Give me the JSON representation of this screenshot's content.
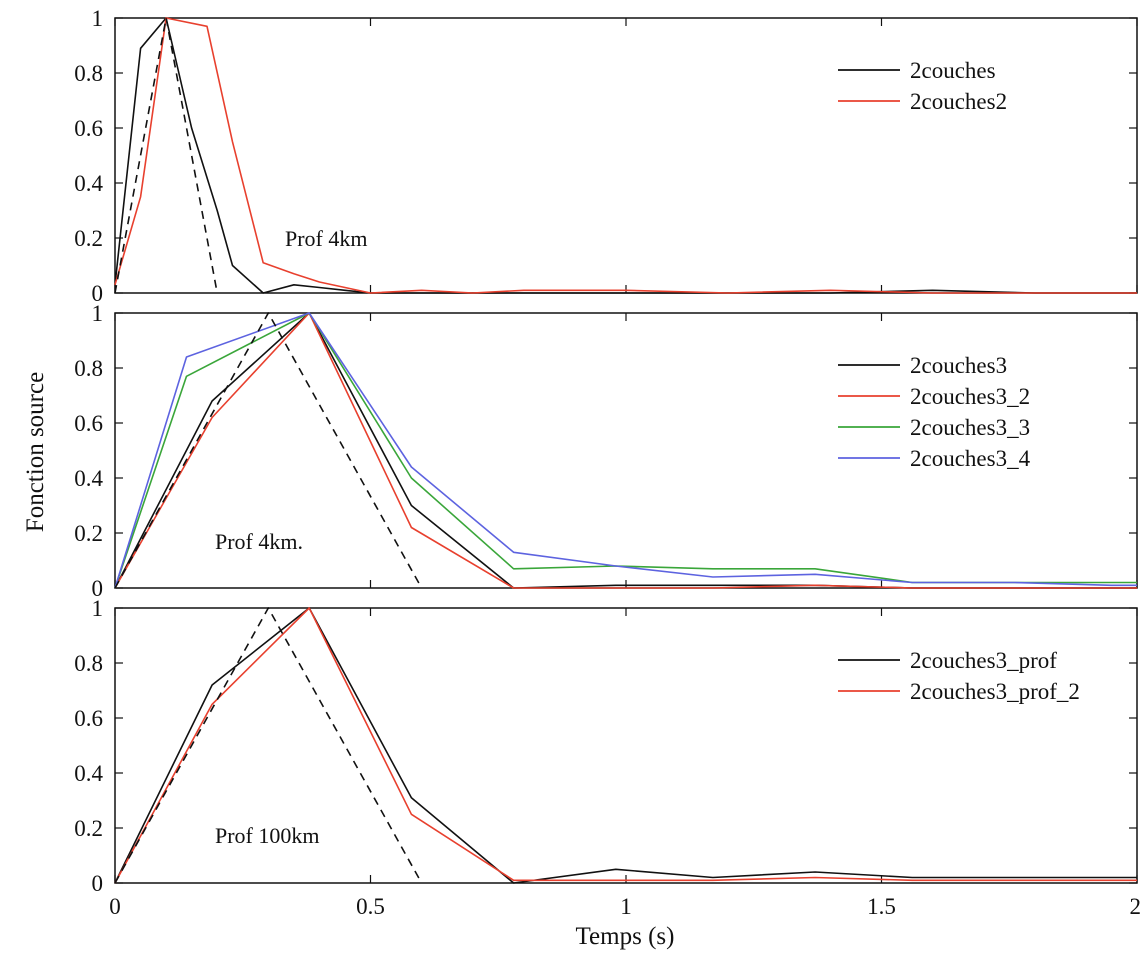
{
  "figure": {
    "ylabel": "Fonction source",
    "xlabel": "Temps (s)"
  },
  "chart_data": [
    {
      "type": "line",
      "annotation": "Prof 4km",
      "xlim": [
        0,
        2
      ],
      "ylim": [
        0,
        1
      ],
      "xticks": [
        "0",
        "0.5",
        "1",
        "1.5",
        "2"
      ],
      "yticks": [
        "0",
        "0.2",
        "0.4",
        "0.6",
        "0.8",
        "1"
      ],
      "show_xtick_labels": false,
      "legend": "top-right",
      "series": [
        {
          "name": "2couches",
          "color": "#111111",
          "x": [
            0,
            0.05,
            0.1,
            0.15,
            0.2,
            0.23,
            0.29,
            0.35,
            0.4,
            0.45,
            0.5,
            0.6,
            0.8,
            1.0,
            1.2,
            1.4,
            1.6,
            1.8,
            2.0
          ],
          "y": [
            0.03,
            0.89,
            1.0,
            0.6,
            0.3,
            0.1,
            0.0,
            0.03,
            0.02,
            0.01,
            0.0,
            0.0,
            0.0,
            0.0,
            0.0,
            0.0,
            0.01,
            0.0,
            0.0
          ]
        },
        {
          "name": "2couches2",
          "color": "#e8402e",
          "x": [
            0,
            0.05,
            0.1,
            0.18,
            0.23,
            0.29,
            0.35,
            0.4,
            0.45,
            0.5,
            0.6,
            0.7,
            0.8,
            1.0,
            1.2,
            1.4,
            1.6,
            1.8,
            2.0
          ],
          "y": [
            0.03,
            0.35,
            1.0,
            0.97,
            0.55,
            0.11,
            0.07,
            0.04,
            0.02,
            0.0,
            0.01,
            0.0,
            0.01,
            0.01,
            0.0,
            0.01,
            0.0,
            0.0,
            0.0
          ]
        },
        {
          "name": "",
          "color": "#111111",
          "dashed": true,
          "x": [
            0,
            0.1,
            0.2
          ],
          "y": [
            0,
            1,
            0
          ]
        }
      ]
    },
    {
      "type": "line",
      "annotation": "Prof 4km.",
      "xlim": [
        0,
        2
      ],
      "ylim": [
        0,
        1
      ],
      "xticks": [
        "0",
        "0.5",
        "1",
        "1.5",
        "2"
      ],
      "yticks": [
        "0",
        "0.2",
        "0.4",
        "0.6",
        "0.8",
        "1"
      ],
      "show_xtick_labels": false,
      "legend": "top-right",
      "series": [
        {
          "name": "2couches3",
          "color": "#111111",
          "x": [
            0,
            0.19,
            0.38,
            0.58,
            0.78,
            0.98,
            1.17,
            1.37,
            1.56,
            1.76,
            1.95,
            2.0
          ],
          "y": [
            0,
            0.68,
            1.0,
            0.3,
            0.0,
            0.01,
            0.01,
            0.01,
            0.0,
            0.0,
            0.0,
            0.0
          ]
        },
        {
          "name": "2couches3_2",
          "color": "#e8402e",
          "x": [
            0,
            0.19,
            0.38,
            0.58,
            0.78,
            0.98,
            1.17,
            1.37,
            1.56,
            1.76,
            1.95,
            2.0
          ],
          "y": [
            0,
            0.62,
            1.0,
            0.22,
            0.0,
            0.0,
            0.0,
            0.01,
            0.0,
            0.0,
            0.0,
            0.0
          ]
        },
        {
          "name": "2couches3_3",
          "color": "#3aa63a",
          "x": [
            0,
            0.14,
            0.38,
            0.58,
            0.78,
            0.98,
            1.17,
            1.37,
            1.56,
            1.76,
            1.95,
            2.0
          ],
          "y": [
            0,
            0.77,
            1.0,
            0.4,
            0.07,
            0.08,
            0.07,
            0.07,
            0.02,
            0.02,
            0.02,
            0.02
          ]
        },
        {
          "name": "2couches3_4",
          "color": "#5d63e0",
          "x": [
            0,
            0.14,
            0.38,
            0.58,
            0.78,
            0.98,
            1.17,
            1.37,
            1.56,
            1.76,
            1.95,
            2.0
          ],
          "y": [
            0,
            0.84,
            1.0,
            0.44,
            0.13,
            0.08,
            0.04,
            0.05,
            0.02,
            0.02,
            0.01,
            0.01
          ]
        },
        {
          "name": "",
          "color": "#111111",
          "dashed": true,
          "x": [
            0,
            0.3,
            0.6
          ],
          "y": [
            0,
            1,
            0
          ]
        }
      ]
    },
    {
      "type": "line",
      "annotation": "Prof 100km",
      "xlim": [
        0,
        2
      ],
      "ylim": [
        0,
        1
      ],
      "xticks": [
        "0",
        "0.5",
        "1",
        "1.5",
        "2"
      ],
      "yticks": [
        "0",
        "0.2",
        "0.4",
        "0.6",
        "0.8",
        "1"
      ],
      "show_xtick_labels": true,
      "legend": "top-right",
      "series": [
        {
          "name": "2couches3_prof",
          "color": "#111111",
          "x": [
            0,
            0.19,
            0.38,
            0.58,
            0.78,
            0.98,
            1.17,
            1.37,
            1.56,
            1.76,
            1.95,
            2.0
          ],
          "y": [
            0,
            0.72,
            1.0,
            0.31,
            0.0,
            0.05,
            0.02,
            0.04,
            0.02,
            0.02,
            0.02,
            0.02
          ]
        },
        {
          "name": "2couches3_prof_2",
          "color": "#e8402e",
          "x": [
            0,
            0.19,
            0.38,
            0.58,
            0.78,
            0.98,
            1.17,
            1.37,
            1.56,
            1.76,
            1.95,
            2.0
          ],
          "y": [
            0,
            0.65,
            1.0,
            0.25,
            0.01,
            0.01,
            0.01,
            0.02,
            0.01,
            0.01,
            0.01,
            0.01
          ]
        },
        {
          "name": "",
          "color": "#111111",
          "dashed": true,
          "x": [
            0,
            0.3,
            0.6
          ],
          "y": [
            0,
            1,
            0
          ]
        }
      ]
    }
  ]
}
